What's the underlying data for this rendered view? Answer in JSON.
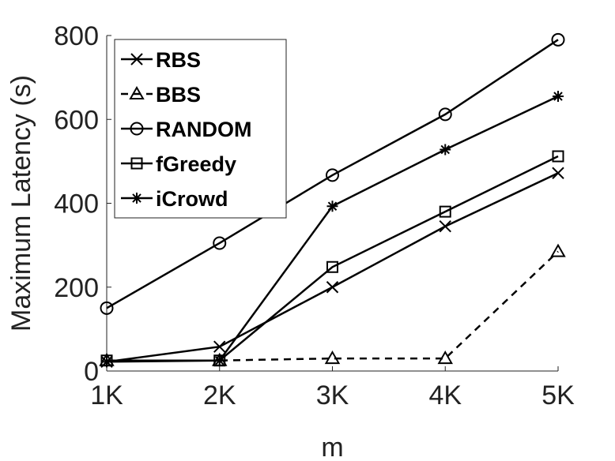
{
  "chart_data": {
    "type": "line",
    "title": "",
    "xlabel": "m",
    "ylabel": "Maximum Latency (s)",
    "categories": [
      "1K",
      "2K",
      "3K",
      "4K",
      "5K"
    ],
    "ylim": [
      0,
      800
    ],
    "yticks": [
      0,
      200,
      400,
      600,
      800
    ],
    "grid": false,
    "legend_position": "top-left",
    "series": [
      {
        "name": "RBS",
        "marker": "x",
        "dash": "solid",
        "color": "#000000",
        "values": [
          22,
          58,
          200,
          345,
          472
        ]
      },
      {
        "name": "BBS",
        "marker": "triangle",
        "dash": "dashed",
        "color": "#000000",
        "values": [
          25,
          25,
          30,
          30,
          285
        ]
      },
      {
        "name": "RANDOM",
        "marker": "circle",
        "dash": "solid",
        "color": "#000000",
        "values": [
          150,
          305,
          467,
          612,
          790
        ]
      },
      {
        "name": "fGreedy",
        "marker": "square",
        "dash": "solid",
        "color": "#000000",
        "values": [
          25,
          25,
          248,
          380,
          512
        ]
      },
      {
        "name": "iCrowd",
        "marker": "asterisk",
        "dash": "solid",
        "color": "#000000",
        "values": [
          22,
          25,
          393,
          528,
          655
        ]
      }
    ]
  }
}
